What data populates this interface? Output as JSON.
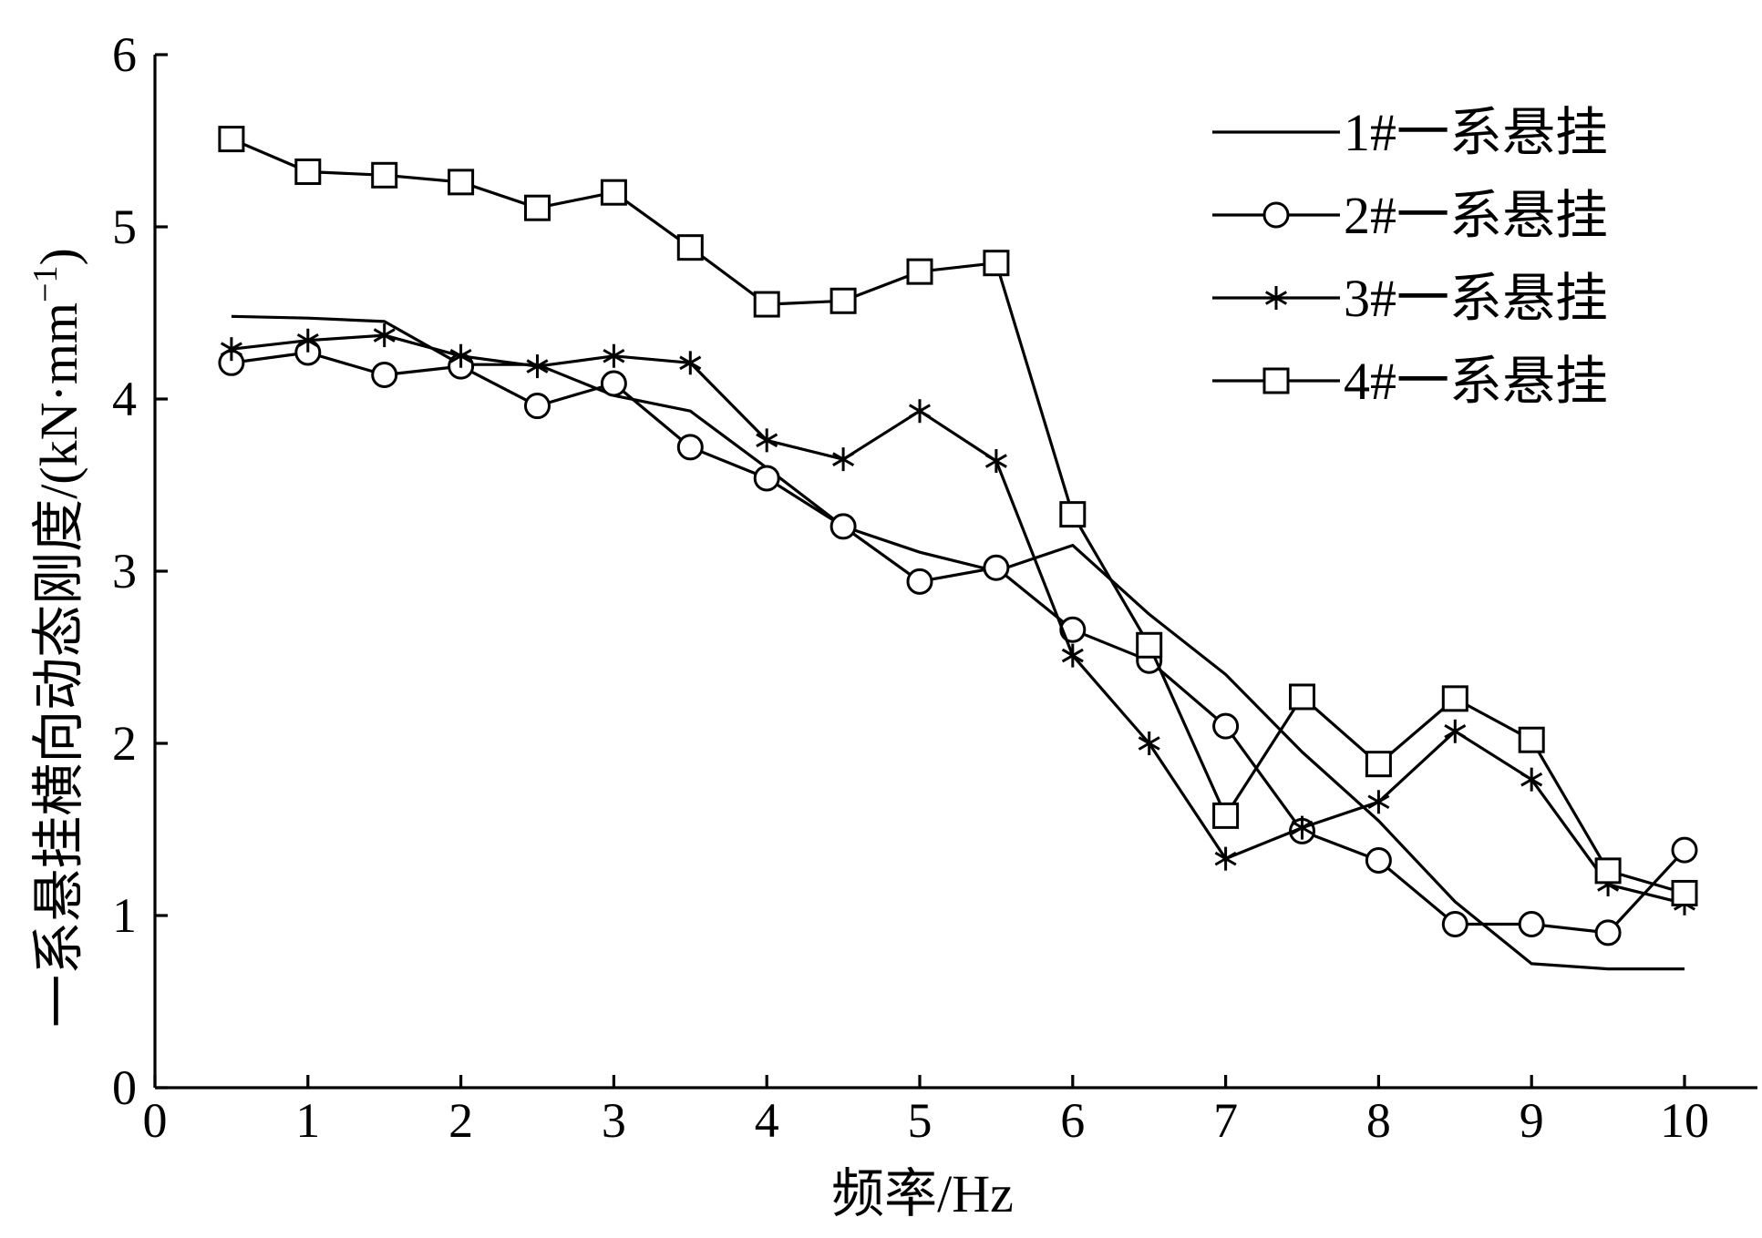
{
  "chart_data": {
    "type": "line",
    "title": "",
    "xlabel": "频率/Hz",
    "ylabel": "一系悬挂横向动态刚度/(kN·mm",
    "ylabel_superscript": "−1",
    "ylabel_suffix": ")",
    "xlim": [
      0,
      10.5
    ],
    "ylim": [
      0,
      6
    ],
    "xticks": [
      0,
      1,
      2,
      3,
      4,
      5,
      6,
      7,
      8,
      9,
      10
    ],
    "yticks": [
      0,
      1,
      2,
      3,
      4,
      5,
      6
    ],
    "grid": false,
    "legend_position": "top-right",
    "x": [
      0.5,
      1,
      1.5,
      2,
      2.5,
      3,
      3.5,
      4,
      4.5,
      5,
      5.5,
      6,
      6.5,
      7,
      7.5,
      8,
      8.5,
      9,
      9.5,
      10
    ],
    "series": [
      {
        "name": "1#一系悬挂",
        "marker": "none",
        "values": [
          4.48,
          4.47,
          4.45,
          4.2,
          4.2,
          4.02,
          3.93,
          3.6,
          3.26,
          3.11,
          3.0,
          3.15,
          2.75,
          2.4,
          1.95,
          1.55,
          1.08,
          0.72,
          0.69,
          0.69
        ]
      },
      {
        "name": "2#一系悬挂",
        "marker": "circle",
        "values": [
          4.21,
          4.27,
          4.14,
          4.19,
          3.96,
          4.09,
          3.72,
          3.54,
          3.26,
          2.94,
          3.02,
          2.66,
          2.48,
          2.1,
          1.49,
          1.32,
          0.95,
          0.95,
          0.9,
          1.38
        ]
      },
      {
        "name": "3#一系悬挂",
        "marker": "asterisk",
        "values": [
          4.29,
          4.34,
          4.37,
          4.25,
          4.19,
          4.25,
          4.21,
          3.76,
          3.65,
          3.93,
          3.64,
          2.51,
          2.0,
          1.33,
          1.51,
          1.66,
          2.07,
          1.79,
          1.18,
          1.07
        ]
      },
      {
        "name": "4#一系悬挂",
        "marker": "square",
        "values": [
          5.51,
          5.32,
          5.3,
          5.26,
          5.11,
          5.2,
          4.88,
          4.55,
          4.57,
          4.74,
          4.79,
          3.33,
          2.57,
          1.58,
          2.27,
          1.88,
          2.26,
          2.02,
          1.26,
          1.13
        ]
      }
    ]
  }
}
